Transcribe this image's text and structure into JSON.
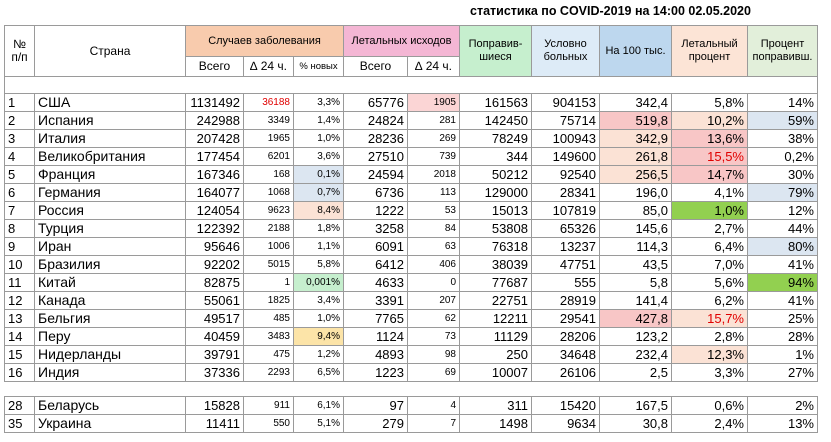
{
  "title": "статистика по COVID-2019 на 14:00 02.05.2020",
  "headers": {
    "num": "№ п/п",
    "country": "Страна",
    "cases": "Случаев заболевания",
    "deaths": "Летальных исходов",
    "recovered": "Поправив-шиеся",
    "active": "Условно больных",
    "per100k": "На 100 тыс.",
    "lethal_pct": "Летальный процент",
    "recovered_pct": "Процент поправивш.",
    "total": "Всего",
    "d24": "∆ 24 ч.",
    "pct_new": "% новых"
  },
  "colors": {
    "cases_header": "#f8cbad",
    "deaths_header": "#f4b6d4",
    "recovered_header": "#c6efce",
    "active_header": "#ddebf7",
    "per100k_header": "#bdd7ee",
    "lethal_header": "#fce4d6",
    "recpct_header": "#e2efda"
  },
  "rows": [
    {
      "n": "1",
      "country": "США",
      "total": "1131492",
      "d24": "36188",
      "pct": "3,3%",
      "dt": "65776",
      "dd": "1905",
      "rec": "161563",
      "act": "904153",
      "p100": "342,4",
      "lp": "5,8%",
      "rp": "14%"
    },
    {
      "n": "2",
      "country": "Испания",
      "total": "242988",
      "d24": "3349",
      "pct": "1,4%",
      "dt": "24824",
      "dd": "281",
      "rec": "142450",
      "act": "75714",
      "p100": "519,8",
      "lp": "10,2%",
      "rp": "59%"
    },
    {
      "n": "3",
      "country": "Италия",
      "total": "207428",
      "d24": "1965",
      "pct": "1,0%",
      "dt": "28236",
      "dd": "269",
      "rec": "78249",
      "act": "100943",
      "p100": "342,9",
      "lp": "13,6%",
      "rp": "38%"
    },
    {
      "n": "4",
      "country": "Великобритания",
      "total": "177454",
      "d24": "6201",
      "pct": "3,6%",
      "dt": "27510",
      "dd": "739",
      "rec": "344",
      "act": "149600",
      "p100": "261,8",
      "lp": "15,5%",
      "rp": "0,2%"
    },
    {
      "n": "5",
      "country": "Франция",
      "total": "167346",
      "d24": "168",
      "pct": "0,1%",
      "dt": "24594",
      "dd": "2018",
      "rec": "50212",
      "act": "92540",
      "p100": "256,5",
      "lp": "14,7%",
      "rp": "30%"
    },
    {
      "n": "6",
      "country": "Германия",
      "total": "164077",
      "d24": "1068",
      "pct": "0,7%",
      "dt": "6736",
      "dd": "113",
      "rec": "129000",
      "act": "28341",
      "p100": "196,0",
      "lp": "4,1%",
      "rp": "79%"
    },
    {
      "n": "7",
      "country": "Россия",
      "total": "124054",
      "d24": "9623",
      "pct": "8,4%",
      "dt": "1222",
      "dd": "53",
      "rec": "15013",
      "act": "107819",
      "p100": "85,0",
      "lp": "1,0%",
      "rp": "12%"
    },
    {
      "n": "8",
      "country": "Турция",
      "total": "122392",
      "d24": "2188",
      "pct": "1,8%",
      "dt": "3258",
      "dd": "84",
      "rec": "53808",
      "act": "65326",
      "p100": "145,6",
      "lp": "2,7%",
      "rp": "44%"
    },
    {
      "n": "9",
      "country": "Иран",
      "total": "95646",
      "d24": "1006",
      "pct": "1,1%",
      "dt": "6091",
      "dd": "63",
      "rec": "76318",
      "act": "13237",
      "p100": "114,3",
      "lp": "6,4%",
      "rp": "80%"
    },
    {
      "n": "10",
      "country": "Бразилия",
      "total": "92202",
      "d24": "5015",
      "pct": "5,8%",
      "dt": "6412",
      "dd": "406",
      "rec": "38039",
      "act": "47751",
      "p100": "43,5",
      "lp": "7,0%",
      "rp": "41%"
    },
    {
      "n": "11",
      "country": "Китай",
      "total": "82875",
      "d24": "1",
      "pct": "0,001%",
      "dt": "4633",
      "dd": "0",
      "rec": "77687",
      "act": "555",
      "p100": "5,8",
      "lp": "5,6%",
      "rp": "94%"
    },
    {
      "n": "12",
      "country": "Канада",
      "total": "55061",
      "d24": "1825",
      "pct": "3,4%",
      "dt": "3391",
      "dd": "207",
      "rec": "22751",
      "act": "28919",
      "p100": "141,4",
      "lp": "6,2%",
      "rp": "41%"
    },
    {
      "n": "13",
      "country": "Бельгия",
      "total": "49517",
      "d24": "485",
      "pct": "1,0%",
      "dt": "7765",
      "dd": "62",
      "rec": "12211",
      "act": "29541",
      "p100": "427,8",
      "lp": "15,7%",
      "rp": "25%"
    },
    {
      "n": "14",
      "country": "Перу",
      "total": "40459",
      "d24": "3483",
      "pct": "9,4%",
      "dt": "1124",
      "dd": "73",
      "rec": "11129",
      "act": "28206",
      "p100": "123,2",
      "lp": "2,8%",
      "rp": "28%"
    },
    {
      "n": "15",
      "country": "Нидерланды",
      "total": "39791",
      "d24": "475",
      "pct": "1,2%",
      "dt": "4893",
      "dd": "98",
      "rec": "250",
      "act": "34648",
      "p100": "232,4",
      "lp": "12,3%",
      "rp": "1%"
    },
    {
      "n": "16",
      "country": "Индия",
      "total": "37336",
      "d24": "2293",
      "pct": "6,5%",
      "dt": "1223",
      "dd": "69",
      "rec": "10007",
      "act": "26106",
      "p100": "2,5",
      "lp": "3,3%",
      "rp": "27%"
    }
  ],
  "extra_rows": [
    {
      "n": "28",
      "country": "Беларусь",
      "total": "15828",
      "d24": "911",
      "pct": "6,1%",
      "dt": "97",
      "dd": "4",
      "rec": "311",
      "act": "15420",
      "p100": "167,5",
      "lp": "0,6%",
      "rp": "2%"
    },
    {
      "n": "35",
      "country": "Украина",
      "total": "11411",
      "d24": "550",
      "pct": "5,1%",
      "dt": "279",
      "dd": "7",
      "rec": "1498",
      "act": "9634",
      "p100": "30,8",
      "lp": "2,4%",
      "rp": "13%"
    }
  ]
}
